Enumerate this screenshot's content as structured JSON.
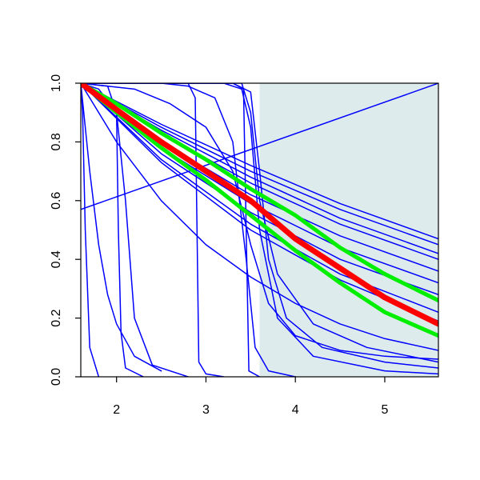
{
  "chart_data": {
    "type": "line",
    "xlim": [
      1.6,
      5.6
    ],
    "ylim": [
      0,
      1
    ],
    "xticks": [
      2,
      3,
      4,
      5
    ],
    "yticks": [
      {
        "value": 0,
        "label": "0.0"
      },
      {
        "value": 0.2,
        "label": "0.2"
      },
      {
        "value": 0.4,
        "label": "0.4"
      },
      {
        "value": 0.6,
        "label": "0.6"
      },
      {
        "value": 0.8,
        "label": "0.8"
      },
      {
        "value": 1,
        "label": "1.0"
      }
    ],
    "band": {
      "x": [
        3.6,
        5.6
      ],
      "color": "#deebec"
    },
    "series": [
      {
        "color": "#0000ff",
        "width": 1.5,
        "x": [
          1.6,
          5.6
        ],
        "values": [
          0.57,
          1.0
        ]
      },
      {
        "color": "#0000ff",
        "width": 1.5,
        "x": [
          1.6,
          2.5,
          3.5,
          4.5,
          5.6
        ],
        "values": [
          1,
          0.86,
          0.72,
          0.59,
          0.47
        ]
      },
      {
        "color": "#0000ff",
        "width": 1.5,
        "x": [
          1.6,
          2.5,
          3.5,
          4.5,
          5.6
        ],
        "values": [
          1,
          0.85,
          0.7,
          0.57,
          0.45
        ]
      },
      {
        "color": "#0000ff",
        "width": 1.5,
        "x": [
          1.6,
          2.5,
          3.5,
          4.5,
          5.6
        ],
        "values": [
          1,
          0.84,
          0.68,
          0.54,
          0.42
        ]
      },
      {
        "color": "#0000ff",
        "width": 1.5,
        "x": [
          1.6,
          2.5,
          3.5,
          4.5,
          5.6
        ],
        "values": [
          1,
          0.83,
          0.66,
          0.52,
          0.4
        ]
      },
      {
        "color": "#0000ff",
        "width": 1.5,
        "x": [
          1.6,
          2.5,
          3.5,
          4.5,
          5.6
        ],
        "values": [
          1,
          0.8,
          0.62,
          0.48,
          0.36
        ]
      },
      {
        "color": "#0000ff",
        "width": 1.5,
        "x": [
          1.6,
          2.5,
          3.5,
          4.5,
          5.6
        ],
        "values": [
          1,
          0.78,
          0.59,
          0.44,
          0.32
        ]
      },
      {
        "color": "#0000ff",
        "width": 1.5,
        "x": [
          1.6,
          2.5,
          3.5,
          4.5,
          5.6
        ],
        "values": [
          1,
          0.76,
          0.56,
          0.4,
          0.28
        ]
      },
      {
        "color": "#0000ff",
        "width": 1.5,
        "x": [
          1.6,
          2.5,
          3.5,
          4.5,
          5.6
        ],
        "values": [
          1,
          0.74,
          0.52,
          0.35,
          0.22
        ]
      },
      {
        "color": "#0000ff",
        "width": 1.5,
        "x": [
          1.6,
          2.5,
          3.5,
          4.5,
          5.6
        ],
        "values": [
          1,
          0.73,
          0.5,
          0.33,
          0.19
        ]
      },
      {
        "color": "#0000ff",
        "width": 1.5,
        "x": [
          1.6,
          2,
          2.5,
          3,
          3.5,
          4,
          4.5,
          5,
          5.6
        ],
        "values": [
          1,
          0.8,
          0.6,
          0.45,
          0.34,
          0.25,
          0.18,
          0.13,
          0.09
        ]
      },
      {
        "color": "#0000ff",
        "width": 1.5,
        "x": [
          1.6,
          1.62,
          1.65,
          1.7,
          1.8
        ],
        "values": [
          1,
          0.9,
          0.5,
          0.1,
          0
        ]
      },
      {
        "color": "#0000ff",
        "width": 1.5,
        "x": [
          1.6,
          1.7,
          1.8,
          1.9,
          2,
          2.2,
          2.5
        ],
        "values": [
          1,
          0.7,
          0.45,
          0.28,
          0.18,
          0.07,
          0.02
        ]
      },
      {
        "color": "#0000ff",
        "width": 1.5,
        "x": [
          1.6,
          1.8,
          2,
          2.1,
          2.2,
          2.4,
          2.8
        ],
        "values": [
          1,
          0.98,
          0.9,
          0.6,
          0.2,
          0.04,
          0
        ]
      },
      {
        "color": "#0000ff",
        "width": 1.5,
        "x": [
          1.6,
          1.9,
          2,
          2.02,
          2.05,
          2.1,
          2.3
        ],
        "values": [
          1,
          0.99,
          0.9,
          0.5,
          0.15,
          0.03,
          0
        ]
      },
      {
        "color": "#0000ff",
        "width": 1.5,
        "x": [
          1.6,
          2.8,
          2.88,
          2.9,
          2.92,
          3,
          3.2
        ],
        "values": [
          1,
          1,
          0.95,
          0.5,
          0.05,
          0.01,
          0
        ]
      },
      {
        "color": "#0000ff",
        "width": 1.5,
        "x": [
          1.6,
          3.3,
          3.42,
          3.45,
          3.48,
          3.6
        ],
        "values": [
          1,
          1,
          0.98,
          0.5,
          0.02,
          0
        ]
      },
      {
        "color": "#0000ff",
        "width": 1.5,
        "x": [
          1.6,
          2.5,
          2.8,
          3.1,
          3.3,
          3.45,
          3.55,
          3.7,
          4
        ],
        "values": [
          1,
          1,
          0.99,
          0.95,
          0.8,
          0.4,
          0.1,
          0.02,
          0
        ]
      },
      {
        "color": "#0000ff",
        "width": 1.5,
        "x": [
          1.6,
          3.2,
          3.4,
          3.5,
          3.6,
          3.8,
          4.2,
          5,
          5.6
        ],
        "values": [
          1,
          1,
          0.98,
          0.85,
          0.5,
          0.2,
          0.07,
          0.02,
          0.01
        ]
      },
      {
        "color": "#0000ff",
        "width": 1.5,
        "x": [
          1.6,
          3.3,
          3.5,
          3.6,
          3.7,
          3.9,
          4.3,
          5,
          5.6
        ],
        "values": [
          1,
          1,
          0.97,
          0.7,
          0.4,
          0.2,
          0.1,
          0.05,
          0.03
        ]
      },
      {
        "color": "#0000ff",
        "width": 1.5,
        "x": [
          1.6,
          3.4,
          3.5,
          3.6,
          3.8,
          4.2,
          4.8,
          5.6
        ],
        "values": [
          1,
          1,
          0.9,
          0.6,
          0.35,
          0.18,
          0.1,
          0.05
        ]
      },
      {
        "color": "#0000ff",
        "width": 1.5,
        "x": [
          1.6,
          2.2,
          2.6,
          3,
          3.3,
          3.5,
          3.7,
          4,
          4.5,
          5,
          5.6
        ],
        "values": [
          1,
          0.98,
          0.93,
          0.85,
          0.7,
          0.45,
          0.25,
          0.14,
          0.09,
          0.07,
          0.06
        ]
      },
      {
        "color": "#00ee00",
        "width": 5,
        "x": [
          1.6,
          2,
          2.5,
          3,
          3.5,
          4,
          4.5,
          5,
          5.6
        ],
        "values": [
          1,
          0.93,
          0.83,
          0.74,
          0.64,
          0.55,
          0.44,
          0.35,
          0.26
        ]
      },
      {
        "color": "#00ee00",
        "width": 5,
        "x": [
          1.6,
          2,
          2.5,
          3,
          3.5,
          4,
          4.5,
          5,
          5.6
        ],
        "values": [
          1,
          0.9,
          0.78,
          0.67,
          0.55,
          0.43,
          0.32,
          0.22,
          0.14
        ]
      },
      {
        "color": "#ff0000",
        "width": 7,
        "x": [
          1.6,
          2,
          2.5,
          3,
          3.5,
          4,
          4.5,
          5,
          5.6
        ],
        "values": [
          1,
          0.91,
          0.8,
          0.7,
          0.6,
          0.47,
          0.37,
          0.27,
          0.18
        ]
      }
    ]
  }
}
